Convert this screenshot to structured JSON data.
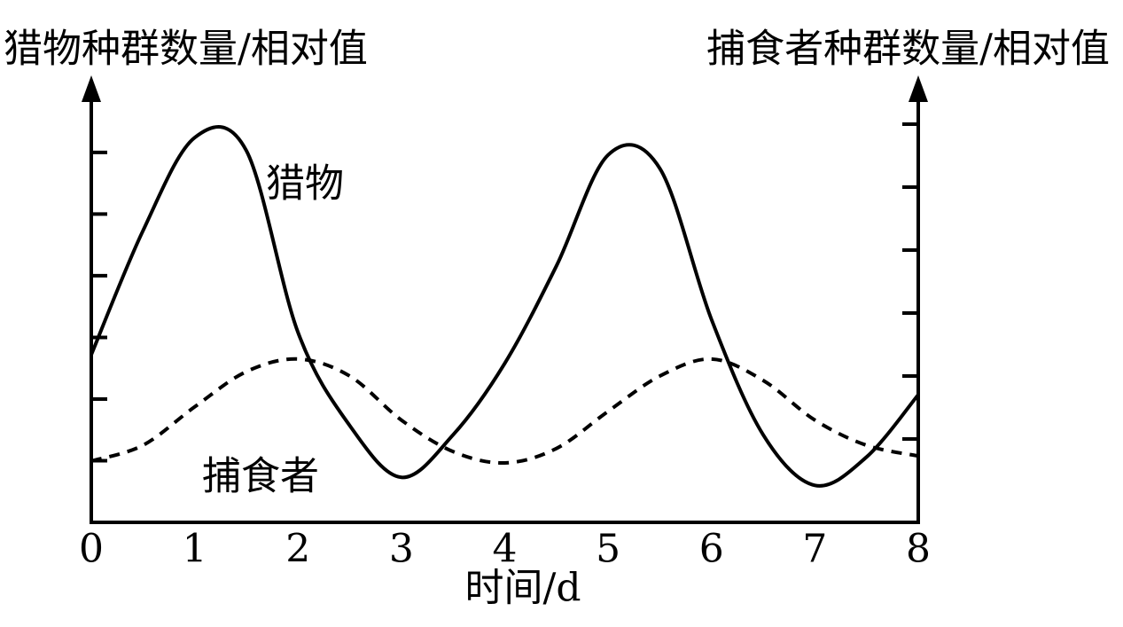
{
  "chart_data": {
    "type": "line",
    "y_label": "猎物种群数量/相对值",
    "y2_label": "捕食者种群数量/相对值",
    "x_label": "时间/d",
    "x": [
      0,
      0.5,
      1,
      1.5,
      2,
      2.5,
      3,
      3.5,
      4,
      4.5,
      5,
      5.5,
      6,
      6.5,
      7,
      7.5,
      8
    ],
    "xlim": [
      0,
      8
    ],
    "xticks": [
      0,
      1,
      2,
      3,
      4,
      5,
      6,
      7,
      8
    ],
    "ylim": [
      0,
      7.25
    ],
    "yticks": [
      1,
      2,
      3,
      4,
      5,
      6
    ],
    "y2lim": [
      -0.324,
      6.775
    ],
    "y2ticks": [
      1,
      2,
      3,
      4,
      5,
      6
    ],
    "series": [
      {
        "name": "猎物",
        "color": "#000000",
        "line_style": "solid",
        "values": [
          2.72,
          4.73,
          6.24,
          6.03,
          3.08,
          1.57,
          0.73,
          1.42,
          2.58,
          4.16,
          5.96,
          5.74,
          3.29,
          1.42,
          0.6,
          1.06,
          2.07
        ]
      },
      {
        "name": "捕食者",
        "color": "#000000",
        "line_style": "dashed",
        "axis": "y2",
        "values": [
          0.65,
          0.9,
          1.51,
          2.07,
          2.27,
          2.0,
          1.3,
          0.8,
          0.62,
          0.85,
          1.44,
          2.0,
          2.27,
          1.93,
          1.3,
          0.9,
          0.73
        ]
      }
    ]
  }
}
